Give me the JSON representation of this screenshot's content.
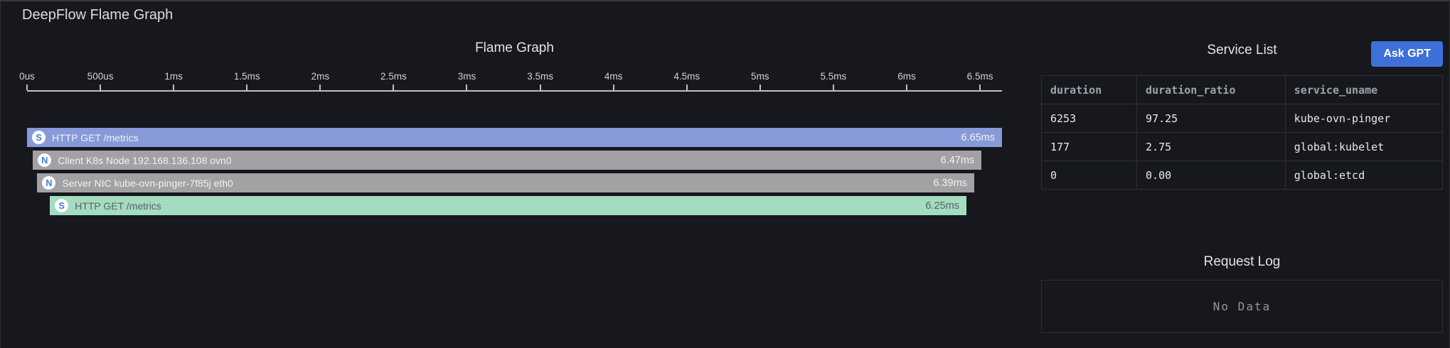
{
  "page": {
    "title": "DeepFlow Flame Graph"
  },
  "flame": {
    "title": "Flame Graph",
    "axis_ticks": [
      "0us",
      "500us",
      "1ms",
      "1.5ms",
      "2ms",
      "2.5ms",
      "3ms",
      "3.5ms",
      "4ms",
      "4.5ms",
      "5ms",
      "5.5ms",
      "6ms",
      "6.5ms"
    ],
    "tick_step_ms": 0.5,
    "total_ms": 6.65,
    "bars": [
      {
        "icon": "S",
        "label": "HTTP GET /metrics",
        "duration": "6.65ms",
        "left_pct": 0,
        "width_pct": 100,
        "color": "#8799d8",
        "text_color": "#f0f1f5"
      },
      {
        "icon": "N",
        "label": "Client K8s Node 192.168.136.108 ovn0",
        "duration": "6.47ms",
        "left_pct": 0.6,
        "width_pct": 97.3,
        "color": "#a2a2a4",
        "text_color": "#f0f1f5"
      },
      {
        "icon": "N",
        "label": "Server NIC kube-ovn-pinger-7f85j eth0",
        "duration": "6.39ms",
        "left_pct": 1.05,
        "width_pct": 96.1,
        "color": "#a2a2a4",
        "text_color": "#f0f1f5"
      },
      {
        "icon": "S",
        "label": "HTTP GET /metrics",
        "duration": "6.25ms",
        "left_pct": 2.35,
        "width_pct": 94.0,
        "color": "#a4dcc0",
        "text_color": "#5b6168"
      }
    ]
  },
  "service_list": {
    "title": "Service List",
    "ask_gpt_label": "Ask GPT",
    "columns": [
      "duration",
      "duration_ratio",
      "service_uname"
    ],
    "rows": [
      [
        "6253",
        "97.25",
        "kube-ovn-pinger"
      ],
      [
        "177",
        "2.75",
        "global:kubelet"
      ],
      [
        "0",
        "0.00",
        "global:etcd"
      ]
    ]
  },
  "request_log": {
    "title": "Request Log",
    "empty_text": "No Data"
  },
  "colors": {
    "accent_blue": "#3d71d9",
    "icon_letter_blue": "#3d7be0",
    "bar_blue": "#8799d8",
    "bar_gray": "#a2a2a4",
    "bar_green": "#a4dcc0",
    "background": "#16181d"
  }
}
